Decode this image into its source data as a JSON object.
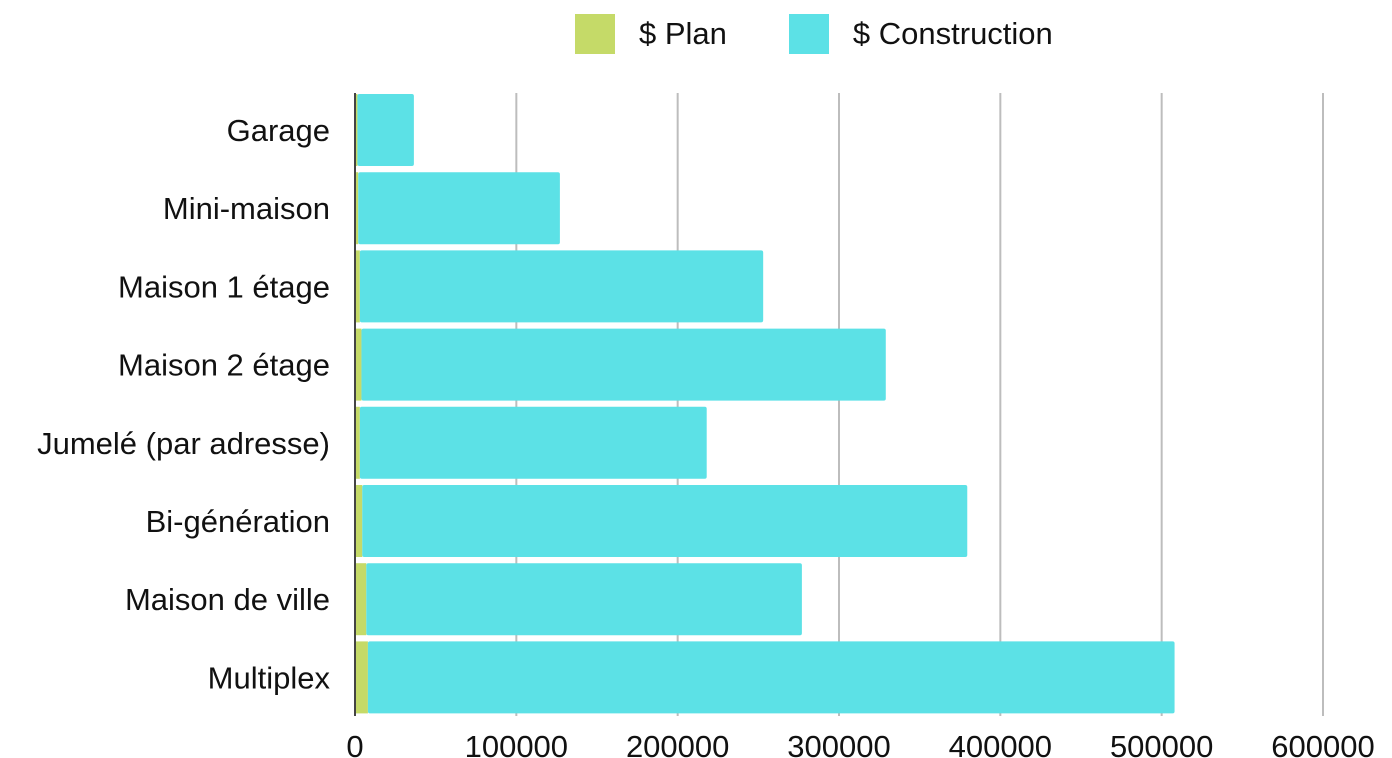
{
  "chart_data": {
    "type": "bar",
    "orientation": "horizontal",
    "stacked": true,
    "categories": [
      "Garage",
      "Mini-maison",
      "Maison 1 étage",
      "Maison 2 étage",
      "Jumelé (par adresse)",
      "Bi-génération",
      "Maison de ville",
      "Multiplex"
    ],
    "series": [
      {
        "name": "$ Plan",
        "color": "#c5da68",
        "values": [
          1500,
          2000,
          3000,
          4000,
          3000,
          4500,
          7000,
          8000
        ]
      },
      {
        "name": "$ Construction",
        "color": "#5ce1e6",
        "values": [
          35000,
          125000,
          250000,
          325000,
          215000,
          375000,
          270000,
          500000
        ]
      }
    ],
    "xlim": [
      0,
      600000
    ],
    "xticks": [
      "0",
      "100000",
      "200000",
      "300000",
      "400000",
      "500000",
      "600000"
    ],
    "grid": true,
    "legend_position": "top"
  }
}
